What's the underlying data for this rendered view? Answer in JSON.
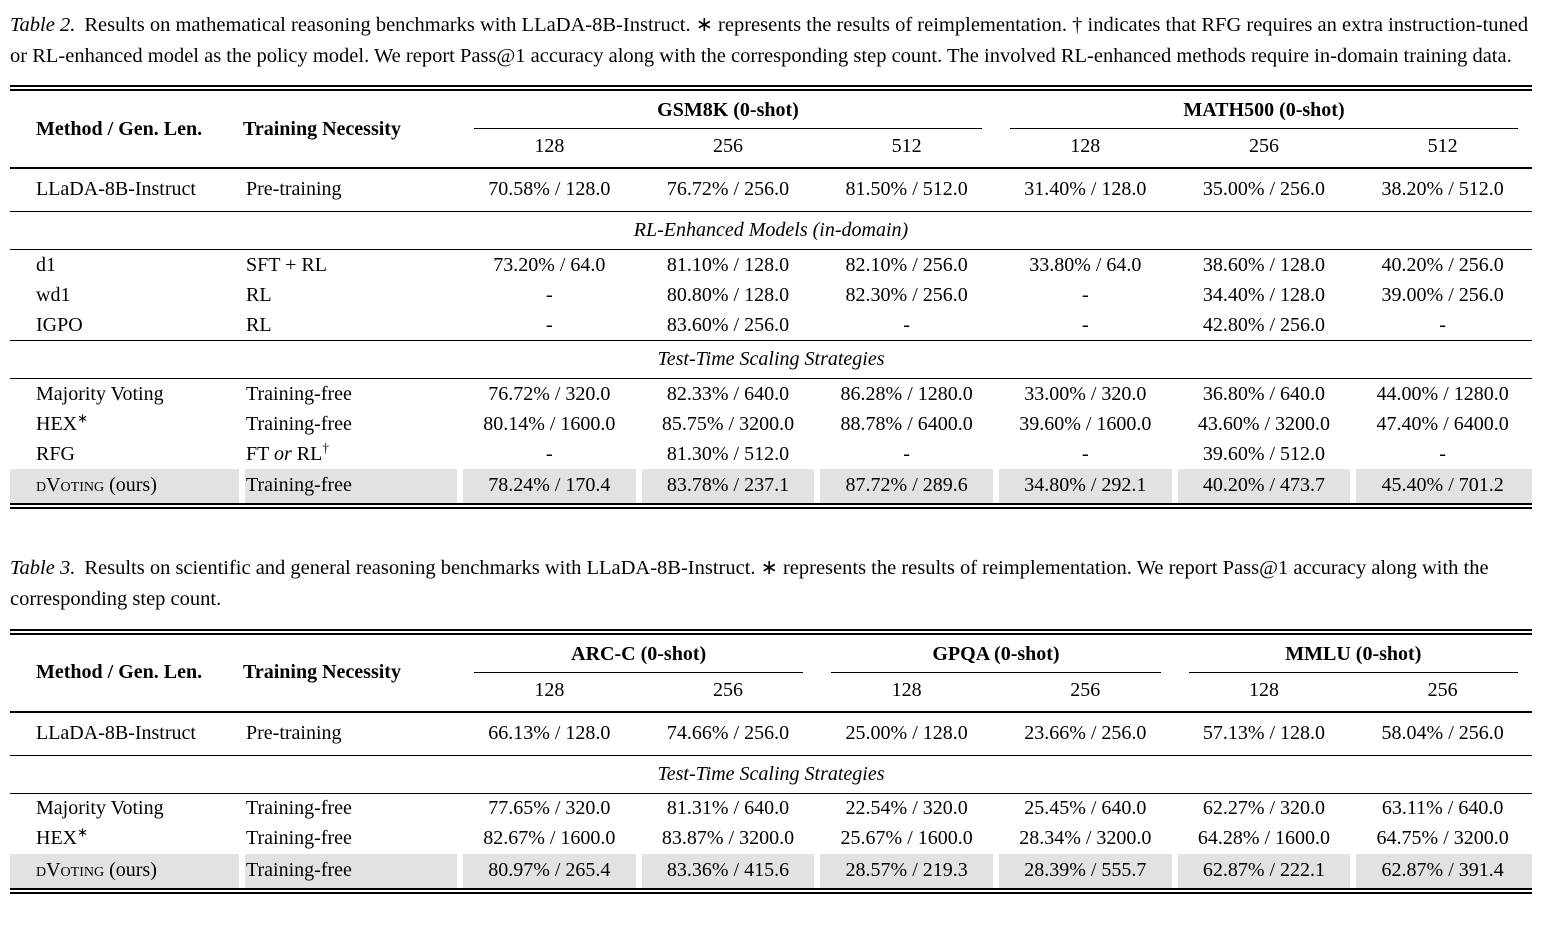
{
  "page": {
    "background_color": "#ffffff",
    "text_color": "#000000",
    "highlight_color": "#e2e2e2"
  },
  "tables": [
    {
      "caption_label": "Table 2.",
      "caption_text": "Results on mathematical reasoning benchmarks with LLaDA-8B-Instruct. ∗ represents the results of reimplementation. † indicates that RFG requires an extra instruction-tuned or RL-enhanced model as the policy model. We report Pass@1 accuracy along with the corresponding step count. The involved RL-enhanced methods require in-domain training data.",
      "header": {
        "method_label": "Method / Gen. Len.",
        "training_label": "Training Necessity",
        "groups": [
          {
            "label": "GSM8K (0-shot)",
            "subcols": [
              "128",
              "256",
              "512"
            ]
          },
          {
            "label": "MATH500 (0-shot)",
            "subcols": [
              "128",
              "256",
              "512"
            ]
          }
        ]
      },
      "body": [
        {
          "type": "data",
          "method": "LLaDA-8B-Instruct",
          "training": "Pre-training",
          "values": [
            "70.58% / 128.0",
            "76.72% / 256.0",
            "81.50% / 512.0",
            "31.40% / 128.0",
            "35.00% / 256.0",
            "38.20% / 512.0"
          ]
        },
        {
          "type": "section",
          "label": "RL-Enhanced Models (in-domain)"
        },
        {
          "type": "data",
          "method": "d1",
          "training": "SFT + RL",
          "values": [
            "73.20% / 64.0",
            "81.10% / 128.0",
            "82.10% / 256.0",
            "33.80% / 64.0",
            "38.60% / 128.0",
            "40.20% / 256.0"
          ]
        },
        {
          "type": "data",
          "method": "wd1",
          "training": "RL",
          "values": [
            "-",
            "80.80% / 128.0",
            "82.30% / 256.0",
            "-",
            "34.40% / 128.0",
            "39.00% / 256.0"
          ]
        },
        {
          "type": "data",
          "method": "IGPO",
          "training": "RL",
          "values": [
            "-",
            "83.60% / 256.0",
            "-",
            "-",
            "42.80% / 256.0",
            "-"
          ]
        },
        {
          "type": "section",
          "label": "Test-Time Scaling Strategies"
        },
        {
          "type": "data",
          "method": "Majority Voting",
          "training": "Training-free",
          "values": [
            "76.72% / 320.0",
            "82.33% / 640.0",
            "86.28% / 1280.0",
            "33.00% / 320.0",
            "36.80% / 640.0",
            "44.00% / 1280.0"
          ]
        },
        {
          "type": "data",
          "method": [
            {
              "t": "HEX"
            },
            {
              "t": "∗",
              "sup": true
            }
          ],
          "training": "Training-free",
          "values": [
            "80.14% / 1600.0",
            "85.75% / 3200.0",
            "88.78% / 6400.0",
            "39.60% / 1600.0",
            "43.60% / 3200.0",
            "47.40% / 6400.0"
          ]
        },
        {
          "type": "data",
          "method": "RFG",
          "training": [
            {
              "t": "FT "
            },
            {
              "t": "or",
              "i": true
            },
            {
              "t": " RL"
            },
            {
              "t": "†",
              "sup": true
            }
          ],
          "values": [
            "-",
            "81.30% / 512.0",
            "-",
            "-",
            "39.60% / 512.0",
            "-"
          ]
        },
        {
          "type": "data",
          "highlight": true,
          "method": [
            {
              "t": "dVoting",
              "sc": true
            },
            {
              "t": " (ours)"
            }
          ],
          "training": "Training-free",
          "values": [
            "78.24% / 170.4",
            "83.78% / 237.1",
            "87.72% / 289.6",
            "34.80% / 292.1",
            "40.20% / 473.7",
            "45.40% / 701.2"
          ]
        }
      ]
    },
    {
      "caption_label": "Table 3.",
      "caption_text": "Results on scientific and general reasoning benchmarks with LLaDA-8B-Instruct. ∗ represents the results of reimplementation. We report Pass@1 accuracy along with the corresponding step count.",
      "header": {
        "method_label": "Method / Gen. Len.",
        "training_label": "Training Necessity",
        "groups": [
          {
            "label": "ARC-C (0-shot)",
            "subcols": [
              "128",
              "256"
            ]
          },
          {
            "label": "GPQA (0-shot)",
            "subcols": [
              "128",
              "256"
            ]
          },
          {
            "label": "MMLU (0-shot)",
            "subcols": [
              "128",
              "256"
            ]
          }
        ]
      },
      "body": [
        {
          "type": "data",
          "method": "LLaDA-8B-Instruct",
          "training": "Pre-training",
          "values": [
            "66.13% / 128.0",
            "74.66% / 256.0",
            "25.00% / 128.0",
            "23.66% / 256.0",
            "57.13% / 128.0",
            "58.04% / 256.0"
          ]
        },
        {
          "type": "section",
          "label": "Test-Time Scaling Strategies"
        },
        {
          "type": "data",
          "method": "Majority Voting",
          "training": "Training-free",
          "values": [
            "77.65% / 320.0",
            "81.31% / 640.0",
            "22.54% / 320.0",
            "25.45% / 640.0",
            "62.27% / 320.0",
            "63.11% / 640.0"
          ]
        },
        {
          "type": "data",
          "method": [
            {
              "t": "HEX"
            },
            {
              "t": "∗",
              "sup": true
            }
          ],
          "training": "Training-free",
          "values": [
            "82.67% / 1600.0",
            "83.87% / 3200.0",
            "25.67% / 1600.0",
            "28.34% / 3200.0",
            "64.28% / 1600.0",
            "64.75% / 3200.0"
          ]
        },
        {
          "type": "data",
          "highlight": true,
          "method": [
            {
              "t": "dVoting",
              "sc": true
            },
            {
              "t": " (ours)"
            }
          ],
          "training": "Training-free",
          "values": [
            "80.97% / 265.4",
            "83.36% / 415.6",
            "28.57% / 219.3",
            "28.39% / 555.7",
            "62.87% / 222.1",
            "62.87% / 391.4"
          ]
        }
      ]
    }
  ]
}
